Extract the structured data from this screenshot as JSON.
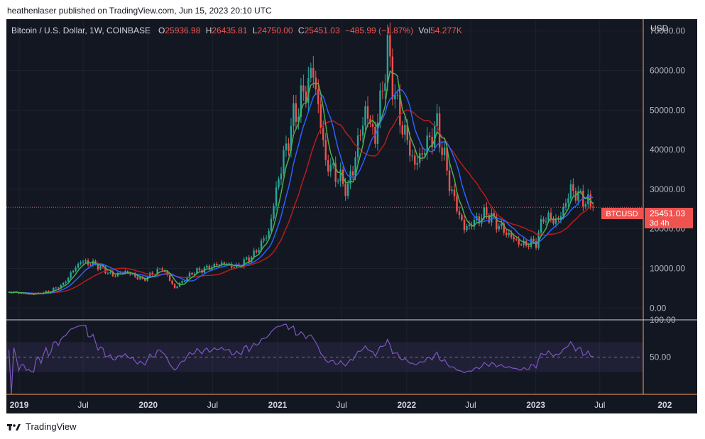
{
  "header": {
    "published": "heathenlaser published on TradingView.com, Jun 15, 2023 20:10 UTC"
  },
  "legend": {
    "symbol": "Bitcoin / U.S. Dollar, 1W, COINBASE",
    "o_label": "O",
    "o_value": "25936.98",
    "h_label": "H",
    "h_value": "26435.81",
    "l_label": "L",
    "l_value": "24750.00",
    "c_label": "C",
    "c_value": "25451.03",
    "change": "−485.99 (−1.87%)",
    "vol_label": "Vol",
    "vol_value": "54.277K"
  },
  "price_axis": {
    "currency": "USD",
    "ticks": [
      "70000.00",
      "60000.00",
      "50000.00",
      "40000.00",
      "30000.00",
      "20000.00",
      "10000.00",
      "0.00"
    ]
  },
  "price_tag": {
    "symbol": "BTCUSD",
    "price": "25451.03",
    "countdown": "3d 4h"
  },
  "rsi_axis": {
    "ticks": [
      "100.00",
      "50.00"
    ]
  },
  "time_axis": {
    "labels": [
      {
        "text": "2019",
        "bold": true
      },
      {
        "text": "Jul",
        "bold": false
      },
      {
        "text": "2020",
        "bold": true
      },
      {
        "text": "Jul",
        "bold": false
      },
      {
        "text": "2021",
        "bold": true
      },
      {
        "text": "Jul",
        "bold": false
      },
      {
        "text": "2022",
        "bold": true
      },
      {
        "text": "Jul",
        "bold": false
      },
      {
        "text": "2023",
        "bold": true
      },
      {
        "text": "Jul",
        "bold": false
      },
      {
        "text": "202",
        "bold": true
      }
    ]
  },
  "footer": {
    "logo_icon": "tradingview-logo-icon",
    "brand": "TradingView"
  },
  "colors": {
    "background": "#131722",
    "up": "#26a69a",
    "down": "#ef5350",
    "ma_fast": "#4caf50",
    "ma_mid": "#2962ff",
    "ma_slow": "#b71c1c",
    "rsi": "#7e57c2",
    "axis_line": "#f7a35c"
  },
  "chart_data": {
    "type": "candlestick",
    "interval": "1W",
    "price_range": [
      -3000,
      73000
    ],
    "rsi_range": [
      0,
      100
    ],
    "rsi_band": [
      30,
      70
    ],
    "x_range": [
      "2018-11-26",
      "2023-11-01"
    ],
    "current_price": 25451.03,
    "moving_averages": [
      "green",
      "blue",
      "red"
    ],
    "close_path": [
      [
        "2018-12-03",
        4100
      ],
      [
        "2019-02-04",
        3450
      ],
      [
        "2019-03-25",
        4100
      ],
      [
        "2019-05-06",
        6000
      ],
      [
        "2019-05-27",
        8700
      ],
      [
        "2019-06-24",
        11800
      ],
      [
        "2019-08-05",
        11000
      ],
      [
        "2019-09-23",
        8200
      ],
      [
        "2019-10-28",
        9200
      ],
      [
        "2019-12-16",
        7100
      ],
      [
        "2020-02-10",
        10100
      ],
      [
        "2020-03-16",
        5000
      ],
      [
        "2020-05-04",
        8900
      ],
      [
        "2020-07-27",
        11300
      ],
      [
        "2020-09-07",
        10300
      ],
      [
        "2020-10-26",
        13500
      ],
      [
        "2020-12-07",
        19200
      ],
      [
        "2021-01-04",
        33000
      ],
      [
        "2021-02-15",
        48000
      ],
      [
        "2021-04-12",
        60000
      ],
      [
        "2021-05-17",
        37000
      ],
      [
        "2021-07-19",
        30000
      ],
      [
        "2021-09-06",
        50000
      ],
      [
        "2021-10-04",
        43000
      ],
      [
        "2021-11-08",
        65000
      ],
      [
        "2021-12-06",
        50000
      ],
      [
        "2022-01-24",
        36000
      ],
      [
        "2022-03-28",
        46000
      ],
      [
        "2022-05-09",
        29000
      ],
      [
        "2022-06-13",
        20000
      ],
      [
        "2022-08-15",
        24000
      ],
      [
        "2022-10-03",
        19500
      ],
      [
        "2022-11-21",
        16000
      ],
      [
        "2023-01-02",
        16600
      ],
      [
        "2023-01-23",
        23000
      ],
      [
        "2023-03-06",
        22000
      ],
      [
        "2023-04-10",
        30000
      ],
      [
        "2023-05-22",
        27000
      ],
      [
        "2023-06-12",
        25451
      ]
    ]
  }
}
